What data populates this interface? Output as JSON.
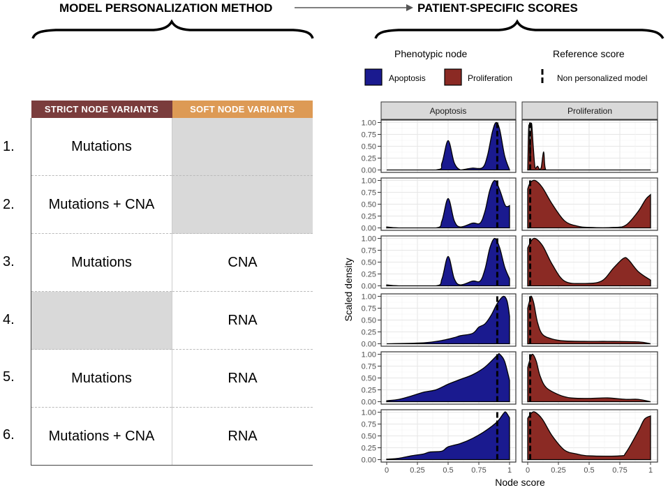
{
  "header": {
    "left_title": "MODEL PERSONALIZATION METHOD",
    "right_title": "PATIENT-SPECIFIC SCORES"
  },
  "table": {
    "col_strict": "STRICT NODE VARIANTS",
    "col_soft": "SOFT NODE VARIANTS",
    "colors": {
      "strict": "#7a3c3c",
      "soft": "#dd9a55",
      "empty": "#d9d9d9"
    },
    "rows": [
      {
        "num": "1.",
        "strict": "Mutations",
        "soft": ""
      },
      {
        "num": "2.",
        "strict": "Mutations + CNA",
        "soft": ""
      },
      {
        "num": "3.",
        "strict": "Mutations",
        "soft": "CNA"
      },
      {
        "num": "4.",
        "strict": "",
        "soft": "RNA"
      },
      {
        "num": "5.",
        "strict": "Mutations",
        "soft": "RNA"
      },
      {
        "num": "6.",
        "strict": "Mutations + CNA",
        "soft": "RNA"
      }
    ]
  },
  "legend": {
    "node_title": "Phenotypic node",
    "ref_title": "Reference score",
    "apoptosis": "Apoptosis",
    "proliferation": "Proliferation",
    "reference": "Non personalized model"
  },
  "chart_data": {
    "type": "area",
    "xlabel": "Node score",
    "ylabel": "Scaled density",
    "xlim": [
      0,
      1
    ],
    "ylim": [
      0,
      1
    ],
    "x_ticks": [
      "0",
      "0.25",
      "0.5",
      "0.75",
      "1"
    ],
    "y_ticks": [
      "0.00",
      "0.25",
      "0.50",
      "0.75",
      "1.00"
    ],
    "facets": [
      "Apoptosis",
      "Proliferation"
    ],
    "colors": {
      "Apoptosis": "#1a1a8f",
      "Proliferation": "#8b2a24"
    },
    "reference_score": {
      "Apoptosis": 0.9,
      "Proliferation": 0.02
    },
    "rows": [
      {
        "Apoptosis": [
          [
            0,
            0
          ],
          [
            0.4,
            0
          ],
          [
            0.45,
            0.15
          ],
          [
            0.5,
            0.62
          ],
          [
            0.55,
            0.15
          ],
          [
            0.6,
            0
          ],
          [
            0.65,
            0.02
          ],
          [
            0.7,
            0.04
          ],
          [
            0.78,
            0.05
          ],
          [
            0.82,
            0.3
          ],
          [
            0.86,
            0.8
          ],
          [
            0.89,
            1.0
          ],
          [
            0.92,
            0.85
          ],
          [
            0.96,
            0.3
          ],
          [
            1,
            0
          ]
        ],
        "Proliferation": [
          [
            0,
            0
          ],
          [
            0.01,
            0.95
          ],
          [
            0.02,
            0.2
          ],
          [
            0.03,
            0.98
          ],
          [
            0.045,
            0.5
          ],
          [
            0.06,
            0.05
          ],
          [
            0.08,
            0.08
          ],
          [
            0.095,
            0.02
          ],
          [
            0.11,
            0.05
          ],
          [
            0.13,
            0.38
          ],
          [
            0.145,
            0.02
          ],
          [
            0.2,
            0
          ],
          [
            1,
            0
          ]
        ]
      },
      {
        "Apoptosis": [
          [
            0,
            0.02
          ],
          [
            0.1,
            0
          ],
          [
            0.4,
            0
          ],
          [
            0.45,
            0.15
          ],
          [
            0.5,
            0.62
          ],
          [
            0.55,
            0.15
          ],
          [
            0.6,
            0.02
          ],
          [
            0.7,
            0.1
          ],
          [
            0.76,
            0.1
          ],
          [
            0.8,
            0.35
          ],
          [
            0.84,
            0.8
          ],
          [
            0.88,
            1.0
          ],
          [
            0.92,
            0.8
          ],
          [
            0.96,
            0.5
          ],
          [
            0.98,
            0.45
          ],
          [
            1,
            0.47
          ]
        ],
        "Proliferation": [
          [
            0,
            0.82
          ],
          [
            0.02,
            0.95
          ],
          [
            0.06,
            1.0
          ],
          [
            0.12,
            0.85
          ],
          [
            0.2,
            0.5
          ],
          [
            0.3,
            0.15
          ],
          [
            0.4,
            0.04
          ],
          [
            0.5,
            0.01
          ],
          [
            0.7,
            0.01
          ],
          [
            0.8,
            0.06
          ],
          [
            0.9,
            0.35
          ],
          [
            0.96,
            0.6
          ],
          [
            1,
            0.7
          ]
        ]
      },
      {
        "Apoptosis": [
          [
            0,
            0.02
          ],
          [
            0.1,
            0
          ],
          [
            0.4,
            0
          ],
          [
            0.45,
            0.15
          ],
          [
            0.5,
            0.62
          ],
          [
            0.55,
            0.15
          ],
          [
            0.6,
            0.02
          ],
          [
            0.7,
            0.1
          ],
          [
            0.76,
            0.1
          ],
          [
            0.8,
            0.35
          ],
          [
            0.84,
            0.8
          ],
          [
            0.88,
            1.0
          ],
          [
            0.92,
            0.8
          ],
          [
            0.96,
            0.4
          ],
          [
            1,
            0.15
          ]
        ],
        "Proliferation": [
          [
            0,
            0.8
          ],
          [
            0.05,
            1.0
          ],
          [
            0.12,
            0.85
          ],
          [
            0.2,
            0.45
          ],
          [
            0.3,
            0.1
          ],
          [
            0.45,
            0.05
          ],
          [
            0.6,
            0.1
          ],
          [
            0.7,
            0.38
          ],
          [
            0.78,
            0.58
          ],
          [
            0.82,
            0.55
          ],
          [
            0.9,
            0.3
          ],
          [
            1,
            0.12
          ]
        ]
      },
      {
        "Apoptosis": [
          [
            0,
            0
          ],
          [
            0.3,
            0.02
          ],
          [
            0.45,
            0.07
          ],
          [
            0.55,
            0.13
          ],
          [
            0.6,
            0.17
          ],
          [
            0.7,
            0.22
          ],
          [
            0.75,
            0.35
          ],
          [
            0.8,
            0.42
          ],
          [
            0.85,
            0.6
          ],
          [
            0.9,
            0.85
          ],
          [
            0.95,
            1.0
          ],
          [
            0.98,
            0.9
          ],
          [
            1,
            0.58
          ]
        ],
        "Proliferation": [
          [
            0,
            0.75
          ],
          [
            0.02,
            0.95
          ],
          [
            0.03,
            1.0
          ],
          [
            0.05,
            0.85
          ],
          [
            0.08,
            0.45
          ],
          [
            0.12,
            0.2
          ],
          [
            0.2,
            0.1
          ],
          [
            0.3,
            0.06
          ],
          [
            0.5,
            0.05
          ],
          [
            0.65,
            0.05
          ],
          [
            0.9,
            0.04
          ],
          [
            1,
            0
          ]
        ]
      },
      {
        "Apoptosis": [
          [
            0,
            0.02
          ],
          [
            0.1,
            0.05
          ],
          [
            0.2,
            0.12
          ],
          [
            0.3,
            0.2
          ],
          [
            0.4,
            0.25
          ],
          [
            0.5,
            0.37
          ],
          [
            0.6,
            0.47
          ],
          [
            0.7,
            0.57
          ],
          [
            0.8,
            0.73
          ],
          [
            0.9,
            0.98
          ],
          [
            0.92,
            1.0
          ],
          [
            0.96,
            0.85
          ],
          [
            1,
            0.45
          ]
        ],
        "Proliferation": [
          [
            0,
            0.72
          ],
          [
            0.02,
            0.9
          ],
          [
            0.04,
            1.0
          ],
          [
            0.07,
            0.85
          ],
          [
            0.1,
            0.55
          ],
          [
            0.15,
            0.3
          ],
          [
            0.25,
            0.15
          ],
          [
            0.35,
            0.08
          ],
          [
            0.5,
            0.07
          ],
          [
            0.65,
            0.08
          ],
          [
            0.8,
            0.05
          ],
          [
            0.9,
            0.05
          ],
          [
            1,
            0
          ]
        ]
      },
      {
        "Apoptosis": [
          [
            0,
            0.01
          ],
          [
            0.1,
            0.03
          ],
          [
            0.2,
            0.08
          ],
          [
            0.3,
            0.12
          ],
          [
            0.35,
            0.16
          ],
          [
            0.45,
            0.18
          ],
          [
            0.5,
            0.27
          ],
          [
            0.6,
            0.34
          ],
          [
            0.7,
            0.45
          ],
          [
            0.8,
            0.6
          ],
          [
            0.9,
            0.8
          ],
          [
            0.95,
            0.97
          ],
          [
            0.97,
            1.0
          ],
          [
            1,
            0.88
          ]
        ],
        "Proliferation": [
          [
            0,
            0.87
          ],
          [
            0.03,
            0.98
          ],
          [
            0.06,
            1.0
          ],
          [
            0.12,
            0.85
          ],
          [
            0.2,
            0.5
          ],
          [
            0.3,
            0.2
          ],
          [
            0.4,
            0.12
          ],
          [
            0.5,
            0.08
          ],
          [
            0.75,
            0.08
          ],
          [
            0.8,
            0.15
          ],
          [
            0.9,
            0.6
          ],
          [
            0.95,
            0.85
          ],
          [
            1,
            0.92
          ]
        ]
      }
    ]
  }
}
